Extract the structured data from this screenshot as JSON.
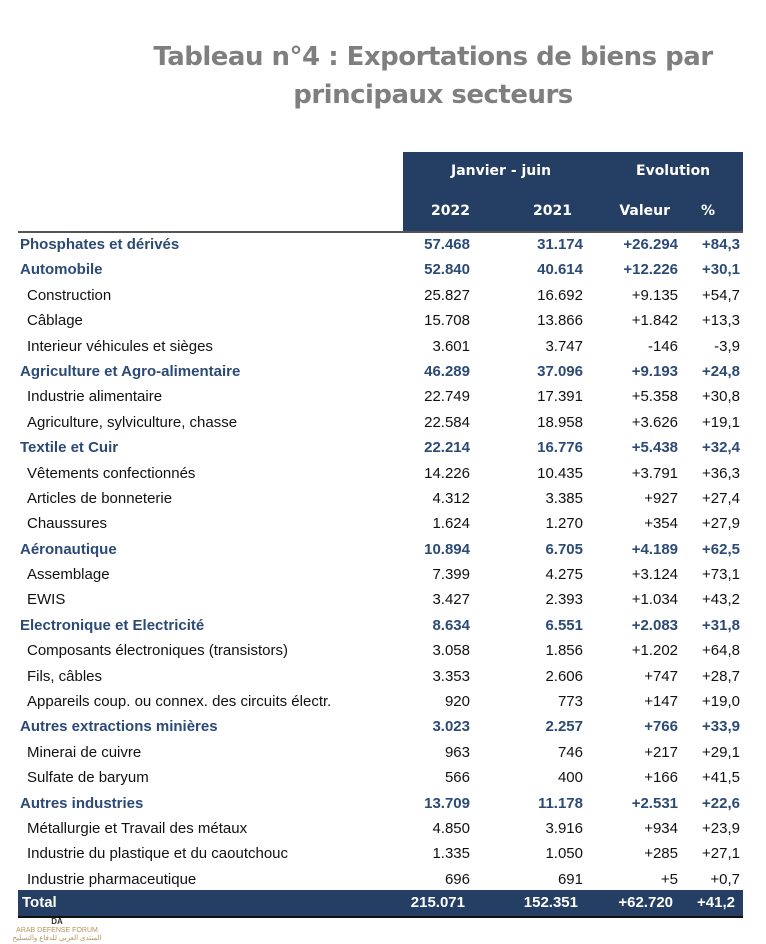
{
  "title": "Tableau n°4 : Exportations de biens par principaux secteurs",
  "title_lines": [
    "Tableau n°4 : Exportations de biens par",
    "principaux secteurs"
  ],
  "header": {
    "group1": "Janvier - juin",
    "group2": "Evolution",
    "col1": "2022",
    "col2": "2021",
    "col3": "Valeur",
    "col4": "%"
  },
  "rows": [
    {
      "label": "Phosphates et dérivés",
      "v2022": "57.468",
      "v2021": "31.174",
      "valeur": "+26.294",
      "pct": "+84,3",
      "category": true
    },
    {
      "label": "Automobile",
      "v2022": "52.840",
      "v2021": "40.614",
      "valeur": "+12.226",
      "pct": "+30,1",
      "category": true
    },
    {
      "label": "Construction",
      "v2022": "25.827",
      "v2021": "16.692",
      "valeur": "+9.135",
      "pct": "+54,7"
    },
    {
      "label": "Câblage",
      "v2022": "15.708",
      "v2021": "13.866",
      "valeur": "+1.842",
      "pct": "+13,3"
    },
    {
      "label": "Interieur véhicules et sièges",
      "v2022": "3.601",
      "v2021": "3.747",
      "valeur": "-146",
      "pct": "-3,9"
    },
    {
      "label": "Agriculture et Agro-alimentaire",
      "v2022": "46.289",
      "v2021": "37.096",
      "valeur": "+9.193",
      "pct": "+24,8",
      "category": true
    },
    {
      "label": "Industrie alimentaire",
      "v2022": "22.749",
      "v2021": "17.391",
      "valeur": "+5.358",
      "pct": "+30,8"
    },
    {
      "label": "Agriculture, sylviculture, chasse",
      "v2022": "22.584",
      "v2021": "18.958",
      "valeur": "+3.626",
      "pct": "+19,1"
    },
    {
      "label": "Textile et Cuir",
      "v2022": "22.214",
      "v2021": "16.776",
      "valeur": "+5.438",
      "pct": "+32,4",
      "category": true
    },
    {
      "label": "Vêtements confectionnés",
      "v2022": "14.226",
      "v2021": "10.435",
      "valeur": "+3.791",
      "pct": "+36,3"
    },
    {
      "label": "Articles de bonneterie",
      "v2022": "4.312",
      "v2021": "3.385",
      "valeur": "+927",
      "pct": "+27,4"
    },
    {
      "label": "Chaussures",
      "v2022": "1.624",
      "v2021": "1.270",
      "valeur": "+354",
      "pct": "+27,9"
    },
    {
      "label": "Aéronautique",
      "v2022": "10.894",
      "v2021": "6.705",
      "valeur": "+4.189",
      "pct": "+62,5",
      "category": true
    },
    {
      "label": "Assemblage",
      "v2022": "7.399",
      "v2021": "4.275",
      "valeur": "+3.124",
      "pct": "+73,1"
    },
    {
      "label": "EWIS",
      "v2022": "3.427",
      "v2021": "2.393",
      "valeur": "+1.034",
      "pct": "+43,2"
    },
    {
      "label": "Electronique et Electricité",
      "v2022": "8.634",
      "v2021": "6.551",
      "valeur": "+2.083",
      "pct": "+31,8",
      "category": true
    },
    {
      "label": "Composants électroniques (transistors)",
      "v2022": "3.058",
      "v2021": "1.856",
      "valeur": "+1.202",
      "pct": "+64,8"
    },
    {
      "label": "Fils, câbles",
      "v2022": "3.353",
      "v2021": "2.606",
      "valeur": "+747",
      "pct": "+28,7"
    },
    {
      "label": "Appareils coup. ou connex. des circuits électr.",
      "v2022": "920",
      "v2021": "773",
      "valeur": "+147",
      "pct": "+19,0"
    },
    {
      "label": "Autres extractions minières",
      "v2022": "3.023",
      "v2021": "2.257",
      "valeur": "+766",
      "pct": "+33,9",
      "category": true
    },
    {
      "label": "Minerai de cuivre",
      "v2022": "963",
      "v2021": "746",
      "valeur": "+217",
      "pct": "+29,1"
    },
    {
      "label": "Sulfate de baryum",
      "v2022": "566",
      "v2021": "400",
      "valeur": "+166",
      "pct": "+41,5"
    },
    {
      "label": "Autres industries",
      "v2022": "13.709",
      "v2021": "11.178",
      "valeur": "+2.531",
      "pct": "+22,6",
      "category": true
    },
    {
      "label": "Métallurgie et Travail des métaux",
      "v2022": "4.850",
      "v2021": "3.916",
      "valeur": "+934",
      "pct": "+23,9"
    },
    {
      "label": "Industrie du plastique et du caoutchouc",
      "v2022": "1.335",
      "v2021": "1.050",
      "valeur": "+285",
      "pct": "+27,1"
    },
    {
      "label": "Industrie pharmaceutique",
      "v2022": "696",
      "v2021": "691",
      "valeur": "+5",
      "pct": "+0,7"
    }
  ],
  "total": {
    "label": "Total",
    "v2022": "215.071",
    "v2021": "152.351",
    "valeur": "+62.720",
    "pct": "+41,2"
  },
  "watermark": {
    "logo": "DA",
    "name": "ARAB DEFENSE FORUM",
    "arabic": "المنتدى العربي للدفاع والتسليح"
  }
}
